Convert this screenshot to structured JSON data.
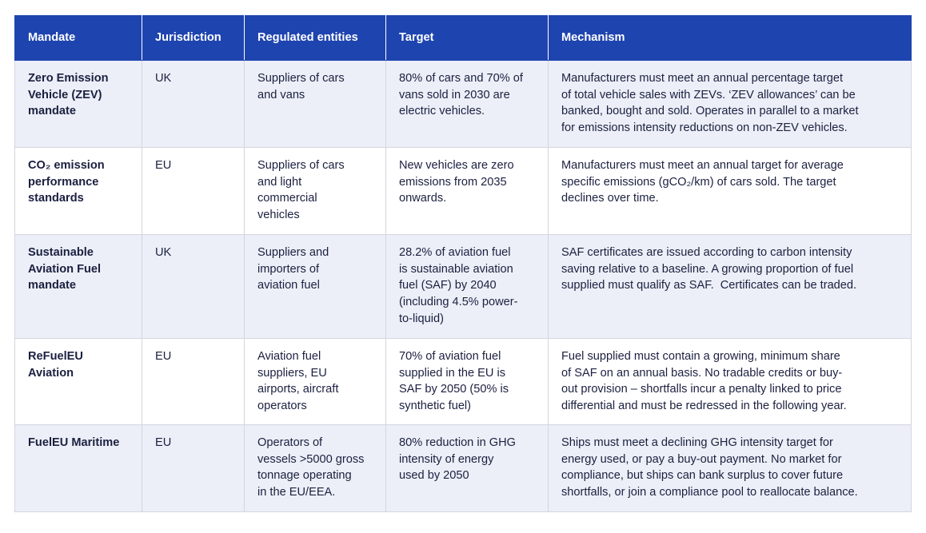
{
  "headers": [
    "Mandate",
    "Jurisdiction",
    "Regulated entities",
    "Target",
    "Mechanism"
  ],
  "rows": [
    {
      "mandate": "Zero Emission\nVehicle (ZEV)\nmandate",
      "jurisdiction": "UK",
      "entities": "Suppliers of cars\nand vans",
      "target": "80% of cars and 70% of\nvans sold in 2030 are\nelectric vehicles.",
      "mechanism": "Manufacturers must meet an annual percentage target\nof total vehicle sales with ZEVs. ‘ZEV allowances’ can be\nbanked, bought and sold. Operates in parallel to a market\nfor emissions intensity reductions on non-ZEV vehicles."
    },
    {
      "mandate": "CO₂ emission\nperformance\nstandards",
      "jurisdiction": "EU",
      "entities": "Suppliers of cars\nand light\ncommercial\nvehicles",
      "target": "New vehicles are zero\nemissions from 2035\nonwards.",
      "mechanism": "Manufacturers must meet an annual target for average\nspecific emissions (gCO₂/km) of cars sold. The target\ndeclines over time."
    },
    {
      "mandate": "Sustainable\nAviation Fuel\nmandate",
      "jurisdiction": "UK",
      "entities": "Suppliers and\nimporters of\naviation fuel",
      "target": "28.2% of aviation fuel\nis sustainable aviation\nfuel (SAF) by 2040\n(including 4.5% power-\nto-liquid)",
      "mechanism": "SAF certificates are issued according to carbon intensity\nsaving relative to a baseline. A growing proportion of fuel\nsupplied must qualify as SAF.  Certificates can be traded."
    },
    {
      "mandate": "ReFuelEU\nAviation",
      "jurisdiction": "EU",
      "entities": "Aviation fuel\nsuppliers, EU\nairports, aircraft\noperators",
      "target": "70% of aviation fuel\nsupplied in the EU is\nSAF by 2050 (50% is\nsynthetic fuel)",
      "mechanism": "Fuel supplied must contain a growing, minimum share\nof SAF on an annual basis. No tradable credits or buy-\nout provision – shortfalls incur a penalty linked to price\ndifferential and must be redressed in the following year."
    },
    {
      "mandate": "FuelEU Maritime",
      "jurisdiction": "EU",
      "entities": "Operators of\nvessels >5000 gross\ntonnage operating\nin the EU/EEA.",
      "target": "80% reduction in GHG\nintensity of energy\nused by 2050",
      "mechanism": "Ships must meet a declining GHG intensity target for\nenergy used, or pay a buy-out payment. No market for\ncompliance, but ships can bank surplus to cover future\nshortfalls, or join a compliance pool to reallocate balance."
    }
  ],
  "colors": {
    "header": "#1e44b0",
    "stripe": "#eceff7",
    "text": "#1b2040"
  }
}
